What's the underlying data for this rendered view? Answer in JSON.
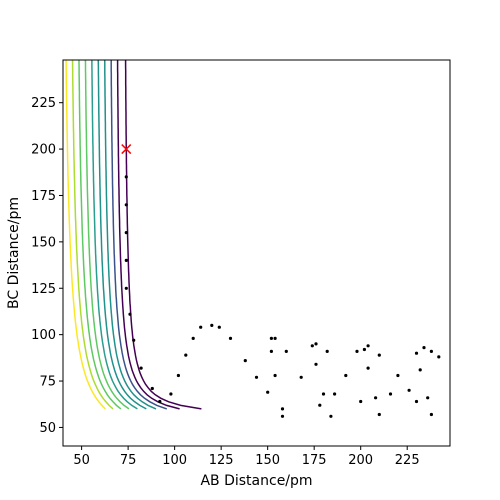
{
  "chart_data": {
    "type": "contour",
    "title": "",
    "xlabel": "AB Distance/pm",
    "ylabel": "BC Distance/pm",
    "xlim": [
      40,
      248
    ],
    "ylim": [
      40,
      248
    ],
    "x_ticks": [
      50,
      75,
      100,
      125,
      150,
      175,
      200,
      225
    ],
    "y_ticks": [
      50,
      75,
      100,
      125,
      150,
      175,
      200,
      225
    ],
    "grid": false,
    "contour_colors": [
      "#440154",
      "#3b528b",
      "#21918c",
      "#2a9d8f",
      "#5ec962",
      "#addc30",
      "#fde725"
    ],
    "contour_offsets": [
      5,
      10,
      14,
      18,
      22,
      26,
      30,
      34,
      38,
      42
    ],
    "trajectory_color": "#000000",
    "trajectory_points": [
      [
        74,
        185
      ],
      [
        74,
        170
      ],
      [
        74,
        155
      ],
      [
        74,
        140
      ],
      [
        74,
        125
      ],
      [
        76,
        111
      ],
      [
        78,
        97
      ],
      [
        82,
        82
      ],
      [
        88,
        71
      ],
      [
        92,
        64
      ],
      [
        98,
        68
      ],
      [
        102,
        78
      ],
      [
        106,
        89
      ],
      [
        110,
        98
      ],
      [
        114,
        104
      ],
      [
        120,
        105
      ],
      [
        124,
        104
      ],
      [
        130,
        98
      ],
      [
        138,
        86
      ],
      [
        144,
        77
      ],
      [
        150,
        69
      ],
      [
        152,
        91
      ],
      [
        152,
        98
      ],
      [
        154,
        98
      ],
      [
        154,
        78
      ],
      [
        158,
        60
      ],
      [
        158,
        56
      ],
      [
        160,
        91
      ],
      [
        168,
        77
      ],
      [
        174,
        94
      ],
      [
        176,
        95
      ],
      [
        176,
        84
      ],
      [
        178,
        62
      ],
      [
        180,
        68
      ],
      [
        182,
        91
      ],
      [
        184,
        56
      ],
      [
        186,
        68
      ],
      [
        192,
        78
      ],
      [
        198,
        91
      ],
      [
        200,
        64
      ],
      [
        202,
        92
      ],
      [
        204,
        94
      ],
      [
        204,
        82
      ],
      [
        208,
        66
      ],
      [
        210,
        57
      ],
      [
        210,
        89
      ],
      [
        216,
        68
      ],
      [
        220,
        78
      ],
      [
        226,
        70
      ],
      [
        230,
        90
      ],
      [
        230,
        64
      ],
      [
        232,
        81
      ],
      [
        234,
        93
      ],
      [
        236,
        66
      ],
      [
        238,
        91
      ],
      [
        238,
        57
      ],
      [
        242,
        88
      ]
    ],
    "start_marker": {
      "x": 74,
      "y": 200,
      "symbol": "x",
      "color": "#ff0000"
    }
  }
}
